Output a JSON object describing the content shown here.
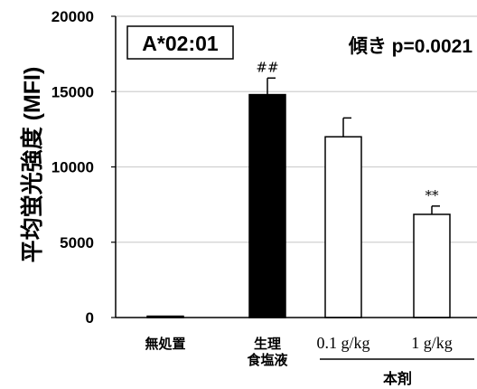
{
  "chart_data": {
    "type": "bar",
    "ylabel": "平均蛍光強度 (MFI)",
    "ylim": [
      0,
      20000
    ],
    "yticks": [
      0,
      5000,
      10000,
      15000,
      20000
    ],
    "grid": true,
    "categories": [
      {
        "lines": [
          "無処置"
        ],
        "value": 50,
        "error": 0,
        "fill": "#000000",
        "annotation": ""
      },
      {
        "lines": [
          "生理",
          "食塩液"
        ],
        "value": 14800,
        "error": 1100,
        "fill": "#000000",
        "annotation": "##"
      },
      {
        "lines": [
          "0.1 g/kg"
        ],
        "value": 12000,
        "error": 1250,
        "fill": "#ffffff",
        "annotation": ""
      },
      {
        "lines": [
          "1 g/kg"
        ],
        "value": 6850,
        "error": 550,
        "fill": "#ffffff",
        "annotation": "**"
      }
    ],
    "group_label": "本剤",
    "boxed_label": "A*02:01",
    "slope_text": "傾き p=0.0021"
  },
  "colors": {
    "grid": "#d0d0d0",
    "axis": "#000000",
    "bar_outline": "#000000"
  }
}
